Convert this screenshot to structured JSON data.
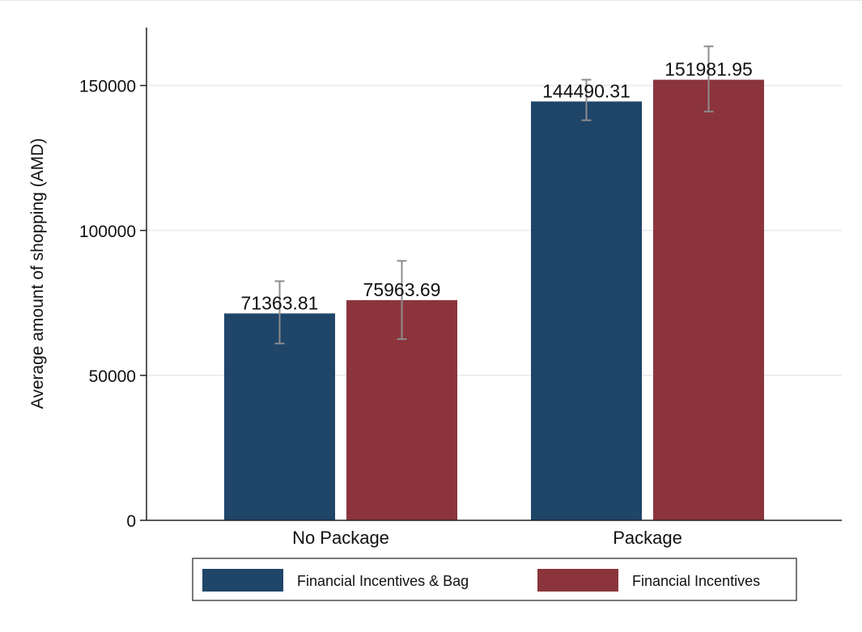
{
  "chart_data": {
    "type": "bar",
    "title": "",
    "xlabel": "",
    "ylabel": "Average amount of shopping (AMD)",
    "categories": [
      "No Package",
      "Package"
    ],
    "ylim": [
      0,
      170000
    ],
    "yticks": [
      0,
      50000,
      100000,
      150000
    ],
    "ytick_labels": [
      "0",
      "50000",
      "100000",
      "150000"
    ],
    "grid": true,
    "legend_position": "bottom",
    "series": [
      {
        "name": "Financial Incentives & Bag",
        "color": "#1f4569",
        "values": [
          71363.81,
          144490.31
        ],
        "labels": [
          "71363.81",
          "144490.31"
        ],
        "ci_low": [
          61000,
          138000
        ],
        "ci_high": [
          82500,
          152000
        ]
      },
      {
        "name": "Financial Incentives",
        "color": "#8b343c",
        "values": [
          75963.69,
          151981.95
        ],
        "labels": [
          "75963.69",
          "151981.95"
        ],
        "ci_low": [
          62500,
          141000
        ],
        "ci_high": [
          89500,
          163500
        ]
      }
    ],
    "error_bar_color": "#8c8c8c",
    "grid_color": "#e8eef2"
  }
}
